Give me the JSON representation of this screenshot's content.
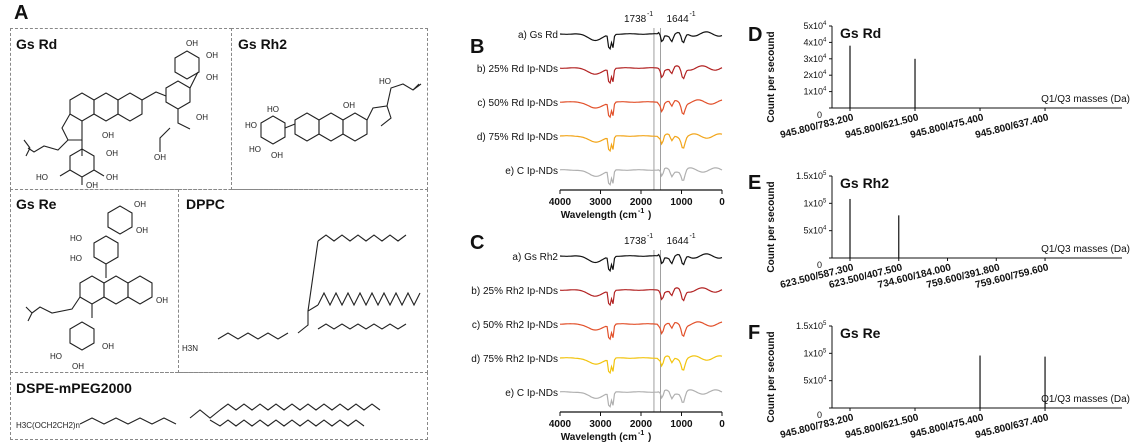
{
  "panels": {
    "A": {
      "letter": "A",
      "molecules": {
        "gs_rd": "Gs Rd",
        "gs_rh2": "Gs Rh2",
        "gs_re": "Gs Re",
        "dppc": "DPPC",
        "dspe": "DSPE-mPEG2000"
      },
      "struct_labels": {
        "oh": "OH",
        "ho": "HO",
        "h3n": "H3N",
        "h3c": "H3C",
        "peg": "(OCH2CH2)n"
      }
    },
    "B": {
      "letter": "B",
      "marker1": "1738",
      "marker2": "1644",
      "marker_sup": "-1",
      "labels": [
        "a) Gs Rd",
        "b) 25% Rd Ip-NDs",
        "c) 50% Rd Ip-NDs",
        "d) 75% Rd Ip-NDs",
        "e) C Ip-NDs"
      ],
      "colors": [
        "#111111",
        "#b22222",
        "#e2512b",
        "#f2a51a",
        "#b0b0b0"
      ],
      "ticks": [
        "4000",
        "3000",
        "2000",
        "1000",
        "0"
      ],
      "xlabel": "Wavelength (cm",
      "xlabel_sup": "-1",
      "xlabel_end": ")"
    },
    "C": {
      "letter": "C",
      "marker1": "1738",
      "marker2": "1644",
      "marker_sup": "-1",
      "labels": [
        "a) Gs Rh2",
        "b) 25% Rh2 Ip-NDs",
        "c) 50% Rh2 Ip-NDs",
        "d) 75% Rh2 Ip-NDs",
        "e) C Ip-NDs"
      ],
      "colors": [
        "#111111",
        "#b22222",
        "#e2512b",
        "#f2c40f",
        "#b0b0b0"
      ],
      "ticks": [
        "4000",
        "3000",
        "2000",
        "1000",
        "0"
      ],
      "xlabel": "Wavelength (cm",
      "xlabel_sup": "-1",
      "xlabel_end": ")"
    },
    "D": {
      "letter": "D",
      "title": "Gs Rd",
      "ylabel": "Count per secound",
      "xlabel": "Q1/Q3 masses (Da)",
      "ticks_y": [
        "5x10",
        "4x10",
        "3x10",
        "2x10",
        "1x10",
        "0"
      ],
      "ticks_y_exp": [
        "4",
        "4",
        "4",
        "4",
        "4",
        ""
      ],
      "ticks_y_val": [
        50000,
        40000,
        30000,
        20000,
        10000,
        0
      ],
      "categories": [
        "945.800/783.200",
        "945.800/621.500",
        "945.800/475.400",
        "945.800/637.400"
      ],
      "values": [
        38000,
        30000,
        0,
        0
      ],
      "ymax": 50000
    },
    "E": {
      "letter": "E",
      "title": "Gs Rh2",
      "ylabel": "Count per secound",
      "xlabel": "Q1/Q3 masses (Da)",
      "ticks_y": [
        "1.5x10",
        "1x10",
        "5x10",
        "0"
      ],
      "ticks_y_exp": [
        "5",
        "5",
        "4",
        ""
      ],
      "ticks_y_val": [
        150000,
        100000,
        50000,
        0
      ],
      "categories": [
        "623.500/587.300",
        "623.500/407.500",
        "734.600/184.000",
        "759.600/391.800",
        "759.600/759.600"
      ],
      "values": [
        108000,
        78000,
        0,
        0,
        0
      ],
      "ymax": 150000
    },
    "F": {
      "letter": "F",
      "title": "Gs Re",
      "ylabel": "Count per secound",
      "xlabel": "Q1/Q3 masses (Da)",
      "ticks_y": [
        "1.5x10",
        "1x10",
        "5x10",
        "0"
      ],
      "ticks_y_exp": [
        "5",
        "5",
        "4",
        ""
      ],
      "ticks_y_val": [
        150000,
        100000,
        50000,
        0
      ],
      "categories": [
        "945.800/783.200",
        "945.800/621.500",
        "945.800/475.400",
        "945.800/637.400"
      ],
      "values": [
        0,
        0,
        96000,
        94000
      ],
      "ymax": 150000
    }
  },
  "chart_data": [
    {
      "type": "bar",
      "title": "Gs Rd",
      "ylabel": "Count per secound",
      "xlabel": "Q1/Q3 masses (Da)",
      "categories": [
        "945.800/783.200",
        "945.800/621.500",
        "945.800/475.400",
        "945.800/637.400"
      ],
      "values": [
        38000,
        30000,
        0,
        0
      ],
      "ylim": [
        0,
        50000
      ]
    },
    {
      "type": "bar",
      "title": "Gs Rh2",
      "ylabel": "Count per secound",
      "xlabel": "Q1/Q3 masses (Da)",
      "categories": [
        "623.500/587.300",
        "623.500/407.500",
        "734.600/184.000",
        "759.600/391.800",
        "759.600/759.600"
      ],
      "values": [
        108000,
        78000,
        0,
        0,
        0
      ],
      "ylim": [
        0,
        150000
      ]
    },
    {
      "type": "bar",
      "title": "Gs Re",
      "ylabel": "Count per secound",
      "xlabel": "Q1/Q3 masses (Da)",
      "categories": [
        "945.800/783.200",
        "945.800/621.500",
        "945.800/475.400",
        "945.800/637.400"
      ],
      "values": [
        0,
        0,
        96000,
        94000
      ],
      "ylim": [
        0,
        150000
      ]
    }
  ]
}
